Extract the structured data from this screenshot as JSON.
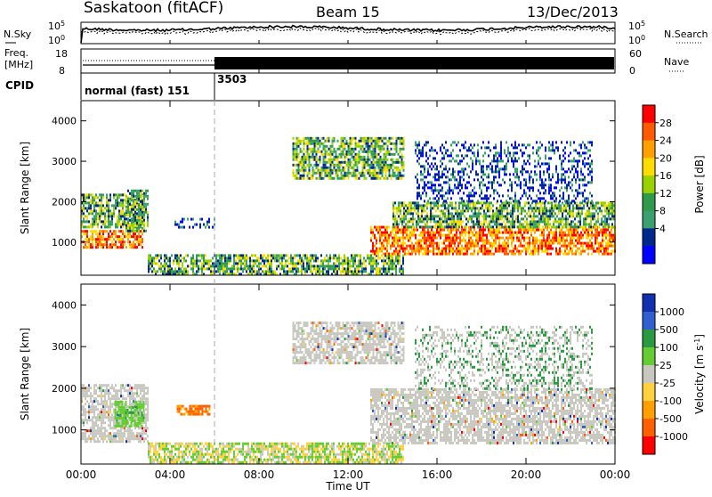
{
  "header": {
    "title": "Saskatoon (fitACF)",
    "beam": "Beam 15",
    "date": "13/Dec/2013"
  },
  "noise_panel": {
    "left_label": "N.Sky",
    "right_label": "N.Search",
    "ticks_left": [
      "10^5",
      "10^0"
    ],
    "ticks_right": [
      "10^5",
      "10^0"
    ]
  },
  "freq_panel": {
    "left_label_line1": "Freq.",
    "left_label_line2": "[MHz]",
    "ticks_left": [
      "18",
      "8"
    ],
    "right_label": "Nave",
    "ticks_right": [
      "60",
      "0"
    ]
  },
  "cpid_panel": {
    "label": "CPID",
    "segments": [
      {
        "text": "normal (fast) 151",
        "start_hour": 0
      },
      {
        "text": "3503",
        "start_hour": 6
      }
    ]
  },
  "time_axis": {
    "label": "Time UT",
    "ticks": [
      "00:00",
      "04:00",
      "08:00",
      "12:00",
      "16:00",
      "20:00",
      "00:00"
    ],
    "range_hours": [
      0,
      24
    ]
  },
  "chart_data": [
    {
      "type": "heatmap",
      "name": "power",
      "ylabel": "Slant Range [km]",
      "ylim": [
        180,
        4500
      ],
      "yticks": [
        1000,
        2000,
        3000,
        4000
      ],
      "colorbar": {
        "label": "Power [dB]",
        "ticks": [
          "28",
          "24",
          "20",
          "16",
          "12",
          "8",
          "4"
        ],
        "colors": [
          "#ff0000",
          "#ff5a00",
          "#ffa000",
          "#ffdc00",
          "#9ad200",
          "#2f9a4a",
          "#3aa070",
          "#00288c",
          "#0000ff"
        ]
      },
      "regions": [
        {
          "t_start": 0.0,
          "t_end": 2.8,
          "range_lo": 900,
          "range_hi": 1300,
          "level": "high"
        },
        {
          "t_start": 0.0,
          "t_end": 2.8,
          "range_lo": 1400,
          "range_hi": 2200,
          "level": "medium"
        },
        {
          "t_start": 2.0,
          "t_end": 3.0,
          "range_lo": 1300,
          "range_hi": 2300,
          "level": "medium"
        },
        {
          "t_start": 4.2,
          "t_end": 6.0,
          "range_lo": 1400,
          "range_hi": 1600,
          "level": "low"
        },
        {
          "t_start": 3.0,
          "t_end": 14.5,
          "range_lo": 200,
          "range_hi": 700,
          "level": "medium"
        },
        {
          "t_start": 9.5,
          "t_end": 14.5,
          "range_lo": 2600,
          "range_hi": 3600,
          "level": "medium"
        },
        {
          "t_start": 13.0,
          "t_end": 24.0,
          "range_lo": 700,
          "range_hi": 1400,
          "level": "high"
        },
        {
          "t_start": 14.0,
          "t_end": 24.0,
          "range_lo": 1400,
          "range_hi": 2000,
          "level": "medium"
        },
        {
          "t_start": 15.0,
          "t_end": 23.0,
          "range_lo": 2000,
          "range_hi": 3500,
          "level": "low"
        }
      ]
    },
    {
      "type": "heatmap",
      "name": "velocity",
      "ylabel": "Slant Range [km]",
      "ylim": [
        180,
        4500
      ],
      "yticks": [
        1000,
        2000,
        3000,
        4000
      ],
      "colorbar": {
        "label": "Velocity [m s^-1]",
        "ticks": [
          "1000",
          "500",
          "100",
          "25",
          "-25",
          "-100",
          "-500",
          "-1000"
        ],
        "colors": [
          "#1030b0",
          "#3060d0",
          "#2a9a40",
          "#66cc33",
          "#c8c8c0",
          "#ffd040",
          "#ffa000",
          "#ff6000",
          "#ff0000"
        ]
      },
      "regions": [
        {
          "t_start": 0.0,
          "t_end": 3.0,
          "range_lo": 700,
          "range_hi": 2100,
          "level": "ground"
        },
        {
          "t_start": 1.5,
          "t_end": 2.8,
          "range_lo": 1100,
          "range_hi": 1700,
          "level": "positive"
        },
        {
          "t_start": 4.3,
          "t_end": 5.8,
          "range_lo": 1400,
          "range_hi": 1600,
          "level": "negative"
        },
        {
          "t_start": 3.0,
          "t_end": 14.5,
          "range_lo": 200,
          "range_hi": 700,
          "level": "mixed"
        },
        {
          "t_start": 9.5,
          "t_end": 14.5,
          "range_lo": 2600,
          "range_hi": 3600,
          "level": "ground"
        },
        {
          "t_start": 13.0,
          "t_end": 24.0,
          "range_lo": 700,
          "range_hi": 2000,
          "level": "ground"
        },
        {
          "t_start": 15.0,
          "t_end": 23.0,
          "range_lo": 2000,
          "range_hi": 3500,
          "level": "sparse"
        }
      ]
    }
  ]
}
